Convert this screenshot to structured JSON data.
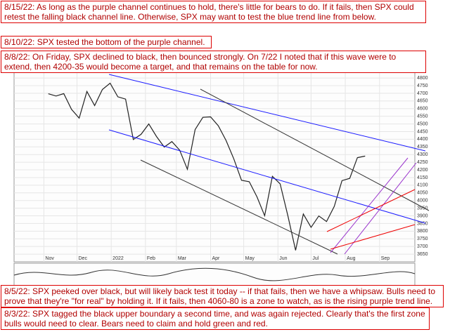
{
  "chart_data": {
    "type": "line",
    "x": [
      4,
      11,
      18,
      25,
      32,
      39,
      46,
      53,
      60,
      67,
      74,
      81,
      88,
      95,
      102,
      109,
      116,
      123,
      130,
      137,
      144,
      151,
      158,
      165,
      172,
      179,
      186,
      193,
      200,
      207,
      214,
      221,
      228,
      235,
      242,
      249,
      256,
      263,
      270,
      277,
      284,
      291
    ],
    "series": [
      {
        "name": "$SPX",
        "color": "#222222",
        "values": [
          4697,
          4682,
          4698,
          4595,
          4538,
          4712,
          4620,
          4725,
          4766,
          4677,
          4662,
          4398,
          4432,
          4500,
          4418,
          4349,
          4385,
          4329,
          4204,
          4463,
          4543,
          4546,
          4488,
          4392,
          4272,
          4132,
          4123,
          4024,
          3901,
          4158,
          4109,
          3901,
          3675,
          3912,
          3825,
          3899,
          3863,
          3962,
          4130,
          4145,
          4280,
          4290
        ]
      }
    ],
    "xlim": [
      -27,
      336
    ],
    "xticks": [
      {
        "value": 0,
        "label": "Nov"
      },
      {
        "value": 30,
        "label": "Dec"
      },
      {
        "value": 61,
        "label": "2022"
      },
      {
        "value": 92,
        "label": "Feb"
      },
      {
        "value": 120,
        "label": "Mar"
      },
      {
        "value": 151,
        "label": "Apr"
      },
      {
        "value": 181,
        "label": "May"
      },
      {
        "value": 212,
        "label": "Jun"
      },
      {
        "value": 242,
        "label": "Jul"
      },
      {
        "value": 273,
        "label": "Aug"
      },
      {
        "value": 304,
        "label": "Sep"
      }
    ],
    "ylim": [
      3600,
      4860
    ],
    "yticks": [
      3650,
      3700,
      3750,
      3800,
      3850,
      3900,
      3950,
      4000,
      4050,
      4100,
      4150,
      4200,
      4250,
      4300,
      4350,
      4400,
      4450,
      4500,
      4550,
      4600,
      4650,
      4700,
      4750,
      4800
    ],
    "grid": true,
    "annotations": [
      "8/15/22:  As long as the purple channel continues to hold, there's little for bears to do.  If it fails, then SPX could retest the falling black channel line.  Otherwise, SPX may want to test the blue trend line from below.",
      "8/10/22:  SPX tested the bottom of the purple channel.",
      "8/8/22:  On Friday, SPX declined to black, then bounced strongly.  On 7/22 I noted that if this wave were to extend, then 4200-35 would become a target, and that remains on the table for now.",
      "8/5/22:  SPX peeked over black, but will likely back test it today -- if that fails, then we have a whipsaw.  Bulls need to prove that they're \"for real\" by holding it.  If it fails, then 4060-80 is a zone to watch, as is the rising purple trend line.",
      "8/3/22:  SPX tagged the black upper boundary a second time, and was again rejected.  Clearly that's the first zone bulls would need to clear.  Bears need to claim and hold green and red."
    ]
  }
}
